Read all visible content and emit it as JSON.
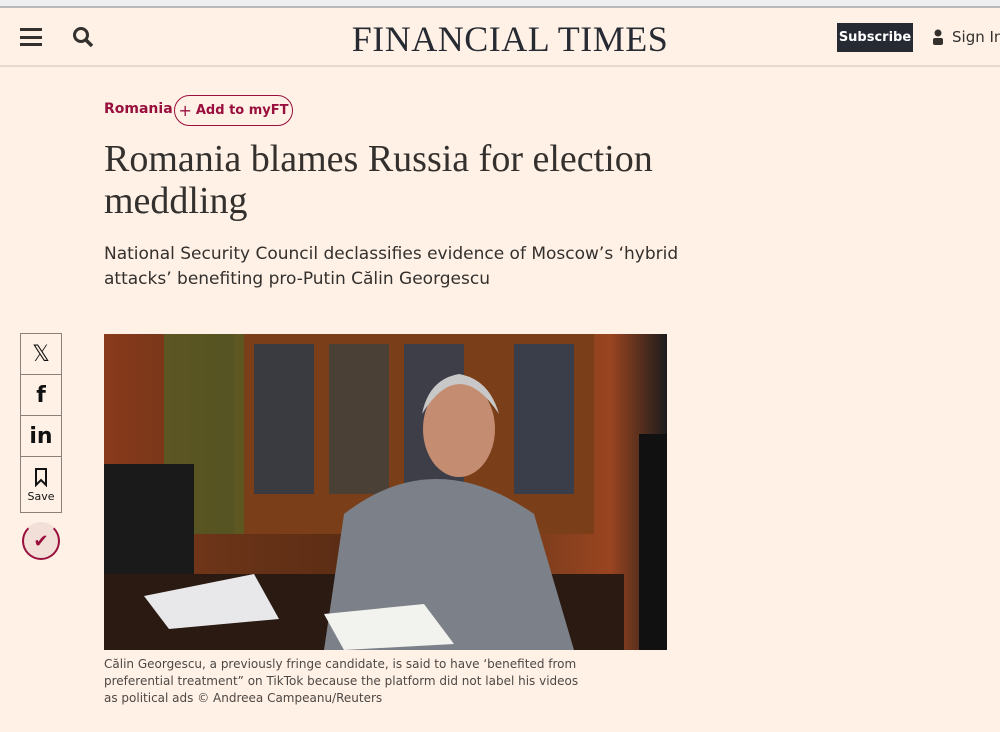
{
  "header": {
    "logo": "FINANCIAL TIMES",
    "subscribe": "Subscribe",
    "sign_in": "Sign In"
  },
  "article": {
    "topic": "Romania",
    "add_to_myft": "Add to myFT",
    "title": "Romania blames Russia for election meddling",
    "standfirst": "National Security Council declassifies evidence of Moscow’s ‘hybrid attacks’ benefiting pro-Putin Călin Georgescu",
    "caption": "Călin Georgescu, a previously fringe candidate, is said to have ‘benefited from preferential treatment” on TikTok because the platform did not label his videos as political ads © Andreea Campeanu/Reuters"
  },
  "share": {
    "x": "𝕏",
    "facebook": "f",
    "linkedin": "in",
    "save": "Save"
  },
  "colors": {
    "background": "#fff1e5",
    "accent": "#990f3d",
    "dark": "#262a33"
  }
}
